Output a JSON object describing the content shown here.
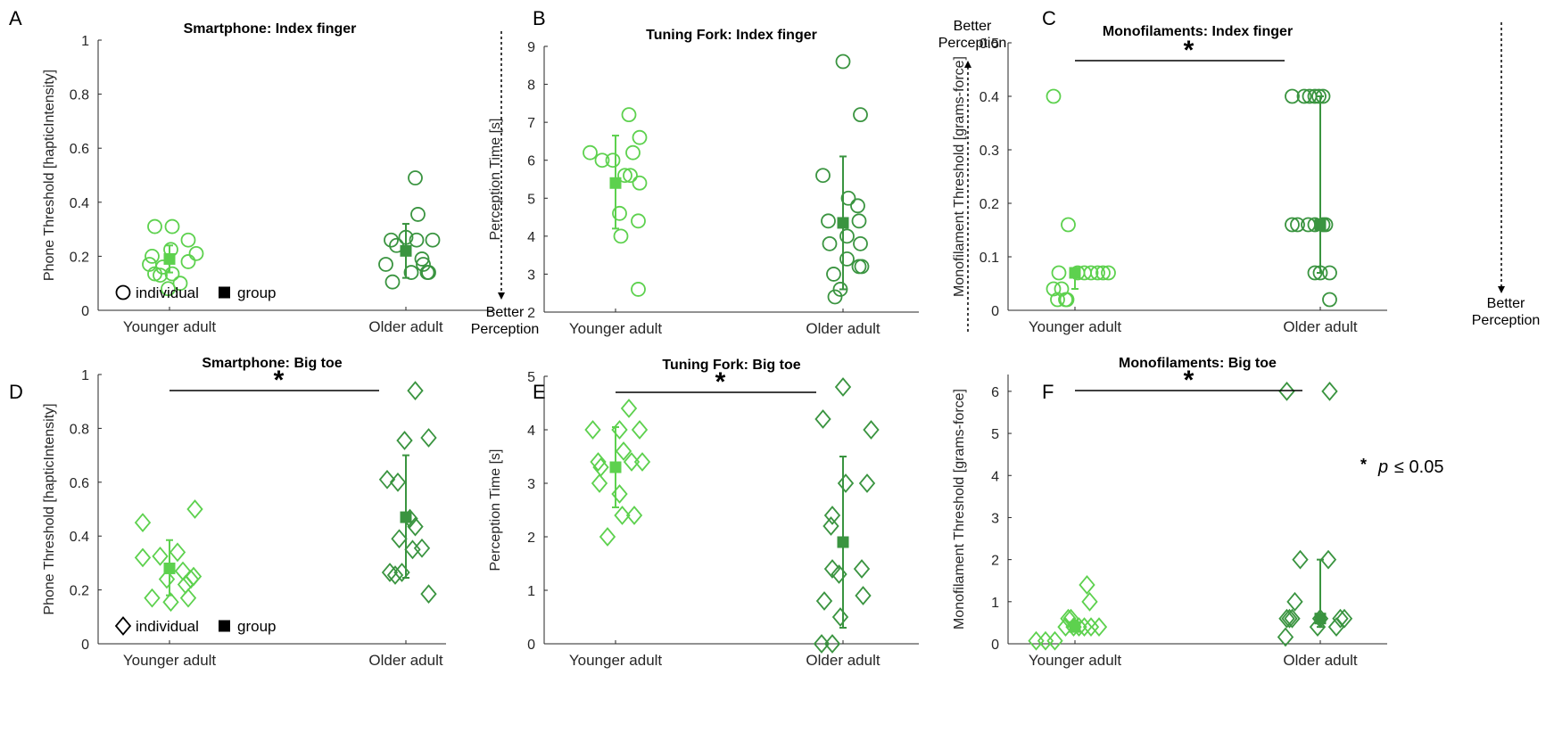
{
  "figure": {
    "colors": {
      "younger": "#5DD14E",
      "older": "#3A9440",
      "axis": "#262626",
      "text": "#000000"
    }
  },
  "chart_data": [
    {
      "panel": "A",
      "type": "scatter",
      "title": "Smartphone: Index finger",
      "xlabel": "",
      "ylabel": "Phone Threshold [hapticIntensity]",
      "categories": [
        "Younger adult",
        "Older adult"
      ],
      "ylim": [
        0,
        1
      ],
      "yticks": [
        0,
        0.2,
        0.4,
        0.6,
        0.8,
        1
      ],
      "ytick_labels": [
        "0",
        "0.2",
        "0.4",
        "0.6",
        "0.8",
        "1"
      ],
      "marker": "circle",
      "series": [
        {
          "name": "Younger adult",
          "points": [
            [
              -0.11,
              0.31
            ],
            [
              0.02,
              0.31
            ],
            [
              -0.13,
              0.2
            ],
            [
              -0.15,
              0.17
            ],
            [
              0.14,
              0.26
            ],
            [
              0.2,
              0.21
            ],
            [
              0.14,
              0.18
            ],
            [
              0.01,
              0.225
            ],
            [
              -0.11,
              0.135
            ],
            [
              -0.07,
              0.13
            ],
            [
              0.02,
              0.135
            ],
            [
              -0.01,
              0.08
            ],
            [
              0.08,
              0.1
            ],
            [
              -0.05,
              0.16
            ]
          ],
          "mean": 0.19,
          "err_low": 0.14,
          "err_high": 0.24
        },
        {
          "name": "Older adult",
          "points": [
            [
              -0.15,
              0.17
            ],
            [
              -0.11,
              0.26
            ],
            [
              -0.1,
              0.105
            ],
            [
              -0.07,
              0.24
            ],
            [
              0.0,
              0.27
            ],
            [
              0.04,
              0.14
            ],
            [
              0.07,
              0.49
            ],
            [
              0.09,
              0.355
            ],
            [
              0.08,
              0.26
            ],
            [
              0.12,
              0.19
            ],
            [
              0.13,
              0.17
            ],
            [
              0.16,
              0.14
            ],
            [
              0.2,
              0.26
            ],
            [
              0.17,
              0.14
            ]
          ],
          "mean": 0.22,
          "err_low": 0.12,
          "err_high": 0.32
        }
      ],
      "legend": {
        "individual_label": "individual",
        "group_label": "group",
        "marker": "circle",
        "position": "bottom-left"
      },
      "arrow": {
        "direction": "down",
        "label_lines": [
          "Better",
          "Perception"
        ]
      }
    },
    {
      "panel": "B",
      "type": "scatter",
      "title": "Tuning Fork: Index finger",
      "xlabel": "",
      "ylabel": "Perception Time [s]",
      "categories": [
        "Younger adult",
        "Older adult"
      ],
      "ylim": [
        2,
        9
      ],
      "yticks": [
        2,
        3,
        4,
        5,
        6,
        7,
        8,
        9
      ],
      "ytick_labels": [
        "2",
        "3",
        "4",
        "5",
        "6",
        "7",
        "8",
        "9"
      ],
      "marker": "circle",
      "series": [
        {
          "name": "Younger adult",
          "points": [
            [
              -0.19,
              6.2
            ],
            [
              -0.1,
              6.0
            ],
            [
              -0.02,
              6.0
            ],
            [
              0.1,
              7.2
            ],
            [
              0.13,
              6.2
            ],
            [
              0.18,
              6.6
            ],
            [
              0.07,
              5.6
            ],
            [
              0.11,
              5.6
            ],
            [
              0.18,
              5.4
            ],
            [
              0.03,
              4.6
            ],
            [
              0.04,
              4.0
            ],
            [
              0.17,
              4.4
            ],
            [
              0.17,
              2.6
            ]
          ],
          "mean": 5.4,
          "err_low": 4.2,
          "err_high": 6.65
        },
        {
          "name": "Older adult",
          "points": [
            [
              -0.15,
              5.6
            ],
            [
              -0.11,
              4.4
            ],
            [
              -0.1,
              3.8
            ],
            [
              -0.07,
              3.0
            ],
            [
              -0.06,
              2.4
            ],
            [
              -0.02,
              2.6
            ],
            [
              0.0,
              8.6
            ],
            [
              0.04,
              5.0
            ],
            [
              0.03,
              4.0
            ],
            [
              0.03,
              3.4
            ],
            [
              0.11,
              4.8
            ],
            [
              0.12,
              4.4
            ],
            [
              0.13,
              3.8
            ],
            [
              0.13,
              7.2
            ],
            [
              0.12,
              3.2
            ],
            [
              0.14,
              3.2
            ]
          ],
          "mean": 4.35,
          "err_low": 2.6,
          "err_high": 6.1
        }
      ],
      "arrow": {
        "direction": "up",
        "label_lines": [
          "Better",
          "Perception"
        ]
      }
    },
    {
      "panel": "C",
      "type": "scatter",
      "title": "Monofilaments: Index finger",
      "xlabel": "",
      "ylabel": "Monofilament Threshold [grams-force]",
      "categories": [
        "Younger adult",
        "Older adult"
      ],
      "ylim": [
        0,
        0.5
      ],
      "yticks": [
        0,
        0.1,
        0.2,
        0.3,
        0.4,
        0.5
      ],
      "ytick_labels": [
        "0",
        "0.1",
        "0.2",
        "0.3",
        "0.4",
        "0.5"
      ],
      "marker": "circle",
      "significance": {
        "symbol": "*",
        "pair": [
          0,
          1
        ]
      },
      "series": [
        {
          "name": "Younger adult",
          "points": [
            [
              -0.16,
              0.4
            ],
            [
              -0.16,
              0.04
            ],
            [
              -0.12,
              0.07
            ],
            [
              -0.13,
              0.02
            ],
            [
              -0.1,
              0.04
            ],
            [
              -0.05,
              0.16
            ],
            [
              -0.06,
              0.02
            ],
            [
              -0.07,
              0.02
            ],
            [
              0.02,
              0.07
            ],
            [
              0.07,
              0.07
            ],
            [
              0.12,
              0.07
            ],
            [
              0.17,
              0.07
            ],
            [
              0.21,
              0.07
            ],
            [
              0.25,
              0.07
            ]
          ],
          "mean": 0.07,
          "err_low": 0.04,
          "err_high": 0.07
        },
        {
          "name": "Older adult",
          "points": [
            [
              -0.21,
              0.4
            ],
            [
              -0.21,
              0.16
            ],
            [
              -0.17,
              0.16
            ],
            [
              -0.12,
              0.4
            ],
            [
              -0.08,
              0.4
            ],
            [
              -0.04,
              0.4
            ],
            [
              -0.01,
              0.4
            ],
            [
              0.02,
              0.4
            ],
            [
              -0.09,
              0.16
            ],
            [
              -0.04,
              0.16
            ],
            [
              0.02,
              0.16
            ],
            [
              0.04,
              0.16
            ],
            [
              0.0,
              0.07
            ],
            [
              -0.04,
              0.07
            ],
            [
              0.07,
              0.07
            ],
            [
              0.07,
              0.02
            ]
          ],
          "mean": 0.16,
          "err_low": 0.07,
          "err_high": 0.4
        }
      ],
      "arrow": {
        "direction": "down",
        "label_lines": [
          "Better",
          "Perception"
        ]
      }
    },
    {
      "panel": "D",
      "type": "scatter",
      "title": "Smartphone: Big toe",
      "xlabel": "",
      "ylabel": "Phone Threshold [hapticIntensity]",
      "categories": [
        "Younger adult",
        "Older adult"
      ],
      "ylim": [
        0,
        1
      ],
      "yticks": [
        0,
        0.2,
        0.4,
        0.6,
        0.8,
        1
      ],
      "ytick_labels": [
        "0",
        "0.2",
        "0.4",
        "0.6",
        "0.8",
        "1"
      ],
      "marker": "diamond",
      "significance": {
        "symbol": "*",
        "pair": [
          0,
          1
        ]
      },
      "series": [
        {
          "name": "Younger adult",
          "points": [
            [
              -0.2,
              0.45
            ],
            [
              -0.2,
              0.32
            ],
            [
              -0.13,
              0.17
            ],
            [
              -0.07,
              0.325
            ],
            [
              -0.02,
              0.24
            ],
            [
              0.01,
              0.155
            ],
            [
              0.06,
              0.34
            ],
            [
              0.1,
              0.27
            ],
            [
              0.12,
              0.22
            ],
            [
              0.14,
              0.17
            ],
            [
              0.16,
              0.24
            ],
            [
              0.18,
              0.25
            ],
            [
              0.19,
              0.5
            ]
          ],
          "mean": 0.28,
          "err_low": 0.18,
          "err_high": 0.385
        },
        {
          "name": "Older adult",
          "points": [
            [
              -0.14,
              0.61
            ],
            [
              -0.12,
              0.265
            ],
            [
              -0.08,
              0.255
            ],
            [
              -0.06,
              0.6
            ],
            [
              -0.05,
              0.39
            ],
            [
              -0.03,
              0.265
            ],
            [
              -0.01,
              0.755
            ],
            [
              0.03,
              0.465
            ],
            [
              0.05,
              0.35
            ],
            [
              0.07,
              0.435
            ],
            [
              0.07,
              0.94
            ],
            [
              0.12,
              0.355
            ],
            [
              0.17,
              0.765
            ],
            [
              0.17,
              0.185
            ]
          ],
          "mean": 0.47,
          "err_low": 0.245,
          "err_high": 0.7
        }
      ],
      "legend": {
        "individual_label": "individual",
        "group_label": "group",
        "marker": "diamond",
        "position": "bottom-left"
      }
    },
    {
      "panel": "E",
      "type": "scatter",
      "title": "Tuning Fork: Big toe",
      "xlabel": "",
      "ylabel": "Perception Time [s]",
      "categories": [
        "Younger adult",
        "Older adult"
      ],
      "ylim": [
        0,
        5
      ],
      "yticks": [
        0,
        1,
        2,
        3,
        4,
        5
      ],
      "ytick_labels": [
        "0",
        "1",
        "2",
        "3",
        "4",
        "5"
      ],
      "marker": "diamond",
      "significance": {
        "symbol": "*",
        "pair": [
          0,
          1
        ]
      },
      "series": [
        {
          "name": "Younger adult",
          "points": [
            [
              -0.17,
              4.0
            ],
            [
              -0.13,
              3.4
            ],
            [
              -0.12,
              3.0
            ],
            [
              -0.11,
              3.3
            ],
            [
              -0.06,
              2.0
            ],
            [
              0.03,
              4.0
            ],
            [
              0.06,
              3.6
            ],
            [
              0.03,
              2.8
            ],
            [
              0.05,
              2.4
            ],
            [
              0.1,
              4.4
            ],
            [
              0.12,
              3.4
            ],
            [
              0.14,
              2.4
            ],
            [
              0.18,
              4.0
            ],
            [
              0.2,
              3.4
            ]
          ],
          "mean": 3.3,
          "err_low": 2.55,
          "err_high": 4.05
        },
        {
          "name": "Older adult",
          "points": [
            [
              -0.16,
              0.0
            ],
            [
              -0.15,
              4.2
            ],
            [
              -0.14,
              0.8
            ],
            [
              -0.09,
              2.2
            ],
            [
              -0.08,
              2.4
            ],
            [
              -0.08,
              0.0
            ],
            [
              -0.08,
              1.4
            ],
            [
              -0.03,
              1.3
            ],
            [
              -0.02,
              0.5
            ],
            [
              0.0,
              4.8
            ],
            [
              0.02,
              3.0
            ],
            [
              0.14,
              1.4
            ],
            [
              0.15,
              0.9
            ],
            [
              0.18,
              3.0
            ],
            [
              0.21,
              4.0
            ]
          ],
          "mean": 1.9,
          "err_low": 0.3,
          "err_high": 3.5
        }
      ]
    },
    {
      "panel": "F",
      "type": "scatter",
      "title": "Monofilaments: Big toe",
      "xlabel": "",
      "ylabel": "Monofilament Threshold [grams-force]",
      "categories": [
        "Younger adult",
        "Older adult"
      ],
      "ylim": [
        0,
        6.4
      ],
      "yticks": [
        0,
        1,
        2,
        3,
        4,
        5,
        6
      ],
      "ytick_labels": [
        "0",
        "1",
        "2",
        "3",
        "4",
        "5",
        "6"
      ],
      "marker": "diamond",
      "significance": {
        "symbol": "*",
        "pair": [
          0,
          1
        ]
      },
      "p_note": {
        "star": "*",
        "p_symbol": "p",
        "text": "≤ 0.05"
      },
      "series": [
        {
          "name": "Younger adult",
          "points": [
            [
              -0.29,
              0.07
            ],
            [
              -0.22,
              0.07
            ],
            [
              -0.15,
              0.07
            ],
            [
              -0.07,
              0.4
            ],
            [
              -0.05,
              0.6
            ],
            [
              -0.03,
              0.6
            ],
            [
              -0.01,
              0.4
            ],
            [
              0.03,
              0.4
            ],
            [
              0.07,
              0.4
            ],
            [
              0.12,
              0.4
            ],
            [
              0.09,
              1.4
            ],
            [
              0.11,
              1.0
            ],
            [
              0.18,
              0.4
            ]
          ],
          "mean": 0.4,
          "err_low": 0.3,
          "err_high": 0.55
        },
        {
          "name": "Older adult",
          "points": [
            [
              -0.25,
              6.0
            ],
            [
              -0.25,
              0.6
            ],
            [
              -0.26,
              0.16
            ],
            [
              -0.23,
              0.6
            ],
            [
              -0.21,
              0.6
            ],
            [
              -0.19,
              1.0
            ],
            [
              -0.15,
              2.0
            ],
            [
              -0.02,
              0.4
            ],
            [
              0.0,
              0.6
            ],
            [
              0.06,
              2.0
            ],
            [
              0.07,
              6.0
            ],
            [
              0.12,
              0.4
            ],
            [
              0.15,
              0.6
            ],
            [
              0.18,
              0.6
            ]
          ],
          "mean": 0.6,
          "err_low": 0.4,
          "err_high": 2.0
        }
      ]
    }
  ]
}
